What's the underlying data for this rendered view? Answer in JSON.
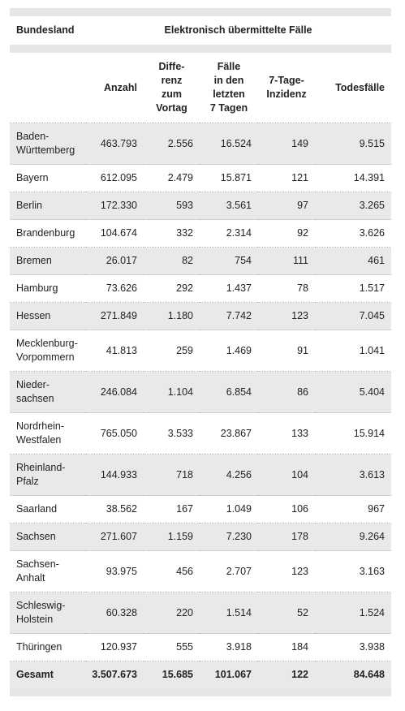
{
  "header": {
    "first": "Bundesland",
    "group": "Elektronisch übermittelte Fälle"
  },
  "columns": [
    "Anzahl",
    "Diffe-\nrenz\nzum\nVortag",
    "Fälle\nin den\nletzten\n7 Tagen",
    "7-Tage-\nInzidenz",
    "Todesfälle"
  ],
  "rows": [
    [
      "Baden-\nWürttemberg",
      "463.793",
      "2.556",
      "16.524",
      "149",
      "9.515"
    ],
    [
      "Bayern",
      "612.095",
      "2.479",
      "15.871",
      "121",
      "14.391"
    ],
    [
      "Berlin",
      "172.330",
      "593",
      "3.561",
      "97",
      "3.265"
    ],
    [
      "Brandenburg",
      "104.674",
      "332",
      "2.314",
      "92",
      "3.626"
    ],
    [
      "Bremen",
      "26.017",
      "82",
      "754",
      "111",
      "461"
    ],
    [
      "Hamburg",
      "73.626",
      "292",
      "1.437",
      "78",
      "1.517"
    ],
    [
      "Hessen",
      "271.849",
      "1.180",
      "7.742",
      "123",
      "7.045"
    ],
    [
      "Mecklenburg-\nVorpommern",
      "41.813",
      "259",
      "1.469",
      "91",
      "1.041"
    ],
    [
      "Nieder-\nsachsen",
      "246.084",
      "1.104",
      "6.854",
      "86",
      "5.404"
    ],
    [
      "Nordrhein-\nWestfalen",
      "765.050",
      "3.533",
      "23.867",
      "133",
      "15.914"
    ],
    [
      "Rheinland-\nPfalz",
      "144.933",
      "718",
      "4.256",
      "104",
      "3.613"
    ],
    [
      "Saarland",
      "38.562",
      "167",
      "1.049",
      "106",
      "967"
    ],
    [
      "Sachsen",
      "271.607",
      "1.159",
      "7.230",
      "178",
      "9.264"
    ],
    [
      "Sachsen-\nAnhalt",
      "93.975",
      "456",
      "2.707",
      "123",
      "3.163"
    ],
    [
      "Schleswig-\nHolstein",
      "60.328",
      "220",
      "1.514",
      "52",
      "1.524"
    ],
    [
      "Thüringen",
      "120.937",
      "555",
      "3.918",
      "184",
      "3.938"
    ]
  ],
  "total": [
    "Gesamt",
    "3.507.673",
    "15.685",
    "101.067",
    "122",
    "84.648"
  ]
}
